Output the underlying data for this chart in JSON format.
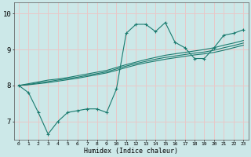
{
  "xlabel": "Humidex (Indice chaleur)",
  "ylabel": "",
  "x_ticks": [
    0,
    1,
    2,
    3,
    4,
    5,
    6,
    7,
    8,
    9,
    10,
    11,
    12,
    13,
    14,
    15,
    16,
    17,
    18,
    19,
    20,
    21,
    22,
    23
  ],
  "ylim": [
    6.5,
    10.3
  ],
  "xlim": [
    -0.5,
    23.5
  ],
  "yticks": [
    7,
    8,
    9,
    10
  ],
  "bg_color": "#cce8e8",
  "grid_color": "#e8c8c8",
  "line_color": "#1a7a6e",
  "series": {
    "line1": [
      8.0,
      7.8,
      7.25,
      6.65,
      7.0,
      7.25,
      7.3,
      7.35,
      7.35,
      7.25,
      7.9,
      9.45,
      9.7,
      9.7,
      9.5,
      9.75,
      9.2,
      9.05,
      8.75,
      8.75,
      9.05,
      9.4,
      9.45,
      9.55
    ],
    "trend1": [
      8.0,
      8.05,
      8.1,
      8.15,
      8.18,
      8.22,
      8.27,
      8.32,
      8.37,
      8.42,
      8.5,
      8.58,
      8.65,
      8.72,
      8.78,
      8.84,
      8.88,
      8.92,
      8.96,
      9.0,
      9.05,
      9.12,
      9.18,
      9.25
    ],
    "trend2": [
      8.0,
      8.02,
      8.05,
      8.08,
      8.12,
      8.16,
      8.2,
      8.25,
      8.3,
      8.35,
      8.42,
      8.5,
      8.57,
      8.63,
      8.68,
      8.73,
      8.77,
      8.81,
      8.85,
      8.88,
      8.92,
      8.98,
      9.05,
      9.12
    ],
    "trend3": [
      8.0,
      8.03,
      8.07,
      8.11,
      8.15,
      8.19,
      8.23,
      8.28,
      8.33,
      8.38,
      8.46,
      8.54,
      8.61,
      8.67,
      8.73,
      8.78,
      8.82,
      8.86,
      8.9,
      8.93,
      8.98,
      9.05,
      9.11,
      9.18
    ]
  }
}
